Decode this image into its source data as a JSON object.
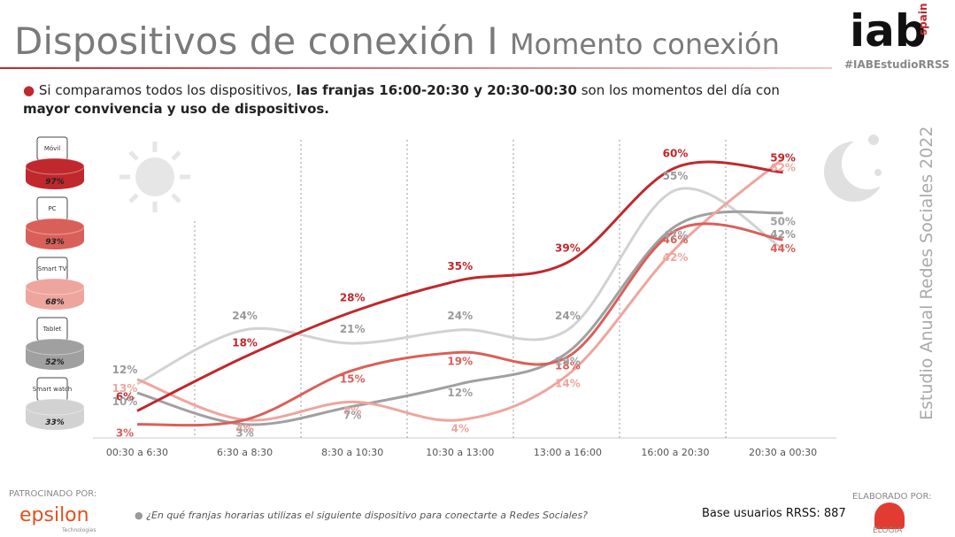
{
  "header": {
    "title": "Dispositivos de conexión I",
    "subtitle": "Momento conexión",
    "logo": "iab",
    "logo_sub": "spain",
    "hashtag": "#IABEstudioRRSS"
  },
  "bullet": [
    "Si comparamos todos los dispositivos, ",
    "las franjas 16:00-20:30 y 20:30-00:30",
    " son los momentos del día con ",
    "mayor convivencia y uso de dispositivos."
  ],
  "side_title": "Estudio Anual Redes Sociales 2022",
  "chart_data": {
    "type": "line",
    "categories": [
      "00:30 a 6:30",
      "6:30 a 8:30",
      "8:30 a 10:30",
      "10:30 a 13:00",
      "13:00 a 16:00",
      "16:00 a 20:30",
      "20:30 a 00:30"
    ],
    "series": [
      {
        "name": "Móvil",
        "color": "#c0282d",
        "usage": 97,
        "usage_label": "97%",
        "values": [
          6,
          18,
          28,
          35,
          39,
          60,
          59
        ],
        "value_labels": [
          "6%",
          "18%",
          "28%",
          "35%",
          "39%",
          "60%",
          "59%"
        ]
      },
      {
        "name": "PC",
        "color": "#d9605a",
        "usage": 93,
        "usage_label": "93%",
        "values": [
          3,
          4,
          15,
          19,
          18,
          46,
          44
        ],
        "value_labels": [
          "3%",
          "4%",
          "15%",
          "19%",
          "18%",
          "46%",
          "44%"
        ]
      },
      {
        "name": "Smart TV",
        "color": "#eea59e",
        "usage": 68,
        "usage_label": "68%",
        "values": [
          13,
          4,
          8,
          4,
          14,
          42,
          62
        ],
        "value_labels": [
          "13%",
          "4%",
          "8%",
          "4%",
          "14%",
          "42%",
          "62%"
        ]
      },
      {
        "name": "Tablet",
        "color": "#a0a0a0",
        "usage": 52,
        "usage_label": "52%",
        "values": [
          10,
          3,
          7,
          12,
          19,
          47,
          50
        ],
        "value_labels": [
          "10%",
          "3%",
          "7%",
          "12%",
          "19%",
          "47%",
          "50%"
        ]
      },
      {
        "name": "Smart watch",
        "color": "#d2d2d2",
        "usage": 33,
        "usage_label": "33%",
        "values": [
          12,
          24,
          21,
          24,
          24,
          55,
          42
        ],
        "value_labels": [
          "12%",
          "24%",
          "21%",
          "24%",
          "24%",
          "55%",
          "42%"
        ]
      }
    ]
  },
  "footer": {
    "sponsor_label": "PATROCINADO POR:",
    "sponsor": "epsilon",
    "sponsor_sub": "Technologies",
    "question": "¿En qué franjas horarias utilizas el siguiente dispositivo para conectarte a Redes Sociales?",
    "base": "Base usuarios RRSS: 887",
    "made_label": "ELABORADO POR:",
    "maker": "ELOGIA"
  }
}
